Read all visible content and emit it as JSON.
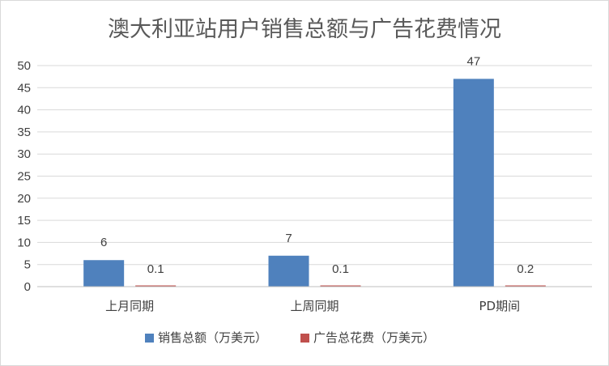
{
  "chart_data": {
    "type": "bar",
    "title": "澳大利亚站用户销售总额与广告花费情况",
    "xlabel": "",
    "ylabel": "",
    "categories": [
      "上月同期",
      "上周同期",
      "PD期间"
    ],
    "series": [
      {
        "name": "销售总额（万美元）",
        "values": [
          6,
          7,
          47
        ],
        "labels": [
          "6",
          "7",
          "47"
        ],
        "color": "#4f81bd"
      },
      {
        "name": "广告总花费（万美元）",
        "values": [
          0.1,
          0.1,
          0.2
        ],
        "labels": [
          "0.1",
          "0.1",
          "0.2"
        ],
        "color": "#c0504d"
      }
    ],
    "ylim": [
      0,
      50
    ],
    "yticks": [
      "0",
      "5",
      "10",
      "15",
      "20",
      "25",
      "30",
      "35",
      "40",
      "45",
      "50"
    ],
    "grid": true,
    "legend": "bottom"
  }
}
